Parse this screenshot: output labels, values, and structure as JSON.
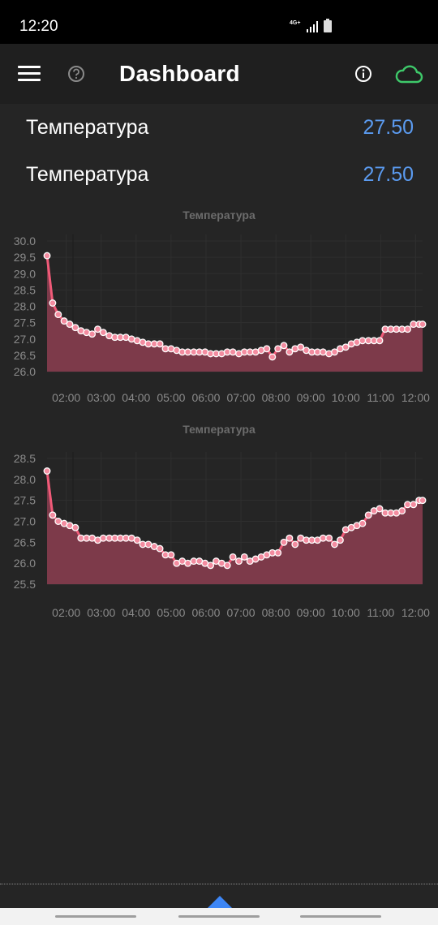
{
  "status_bar": {
    "time": "12:20",
    "network": "4G+",
    "icons": [
      "signal-icon",
      "battery-icon"
    ]
  },
  "app_bar": {
    "title": "Dashboard",
    "icons": [
      "menu-icon",
      "help-icon",
      "info-icon",
      "cloud-icon"
    ],
    "cloud_color": "#3ec96a"
  },
  "values": [
    {
      "label": "Температура",
      "value": "27.50"
    },
    {
      "label": "Температура",
      "value": "27.50"
    }
  ],
  "colors": {
    "accent_value": "#5b9bf0",
    "series_line": "#f05a78",
    "series_fill": "#7d3a4a",
    "point_fill": "#f38ca0"
  },
  "chart_data": [
    {
      "type": "area",
      "title": "Температура",
      "xlabel": "",
      "ylabel": "",
      "ylim": [
        26.0,
        30.0
      ],
      "y_ticks": [
        "30.0",
        "29.5",
        "29.0",
        "28.5",
        "28.0",
        "27.5",
        "27.0",
        "26.5",
        "26.0"
      ],
      "x_ticks": [
        "02:00",
        "03:00",
        "04:00",
        "05:00",
        "06:00",
        "07:00",
        "08:00",
        "09:00",
        "10:00",
        "11:00",
        "12:00"
      ],
      "x_range": [
        1.45,
        12.2
      ],
      "grid": true,
      "legend": "none",
      "series": [
        {
          "x": [
            1.45,
            1.61,
            1.77,
            1.94,
            2.1,
            2.26,
            2.42,
            2.58,
            2.74,
            2.9,
            3.06,
            3.23,
            3.39,
            3.55,
            3.71,
            3.87,
            4.03,
            4.19,
            4.35,
            4.52,
            4.68,
            4.84,
            5.0,
            5.16,
            5.32,
            5.48,
            5.65,
            5.81,
            5.97,
            6.13,
            6.29,
            6.45,
            6.61,
            6.77,
            6.94,
            7.1,
            7.26,
            7.42,
            7.58,
            7.74,
            7.9,
            8.06,
            8.23,
            8.39,
            8.55,
            8.71,
            8.87,
            9.03,
            9.19,
            9.35,
            9.52,
            9.68,
            9.84,
            10.0,
            10.16,
            10.32,
            10.48,
            10.65,
            10.81,
            10.97,
            11.13,
            11.29,
            11.45,
            11.61,
            11.77,
            11.94,
            12.1,
            12.2
          ],
          "y": [
            29.55,
            28.1,
            27.75,
            27.55,
            27.45,
            27.35,
            27.25,
            27.2,
            27.15,
            27.3,
            27.2,
            27.1,
            27.05,
            27.05,
            27.05,
            27.0,
            26.95,
            26.9,
            26.85,
            26.85,
            26.85,
            26.7,
            26.7,
            26.65,
            26.6,
            26.6,
            26.6,
            26.6,
            26.6,
            26.55,
            26.55,
            26.55,
            26.6,
            26.6,
            26.55,
            26.6,
            26.6,
            26.6,
            26.65,
            26.7,
            26.45,
            26.7,
            26.8,
            26.6,
            26.7,
            26.75,
            26.65,
            26.6,
            26.6,
            26.6,
            26.55,
            26.6,
            26.7,
            26.75,
            26.85,
            26.9,
            26.95,
            26.95,
            26.95,
            26.95,
            27.3,
            27.3,
            27.3,
            27.3,
            27.3,
            27.45,
            27.45,
            27.45
          ]
        }
      ]
    },
    {
      "type": "area",
      "title": "Температура",
      "xlabel": "",
      "ylabel": "",
      "ylim": [
        25.5,
        28.5
      ],
      "y_ticks": [
        "28.5",
        "28.0",
        "27.5",
        "27.0",
        "26.5",
        "26.0",
        "25.5"
      ],
      "x_ticks": [
        "02:00",
        "03:00",
        "04:00",
        "05:00",
        "06:00",
        "07:00",
        "08:00",
        "09:00",
        "10:00",
        "11:00",
        "12:00"
      ],
      "x_range": [
        1.45,
        12.2
      ],
      "grid": true,
      "legend": "none",
      "series": [
        {
          "x": [
            1.45,
            1.61,
            1.77,
            1.94,
            2.1,
            2.26,
            2.42,
            2.58,
            2.74,
            2.9,
            3.06,
            3.23,
            3.39,
            3.55,
            3.71,
            3.87,
            4.03,
            4.19,
            4.35,
            4.52,
            4.68,
            4.84,
            5.0,
            5.16,
            5.32,
            5.48,
            5.65,
            5.81,
            5.97,
            6.13,
            6.29,
            6.45,
            6.61,
            6.77,
            6.94,
            7.1,
            7.26,
            7.42,
            7.58,
            7.74,
            7.9,
            8.06,
            8.23,
            8.39,
            8.55,
            8.71,
            8.87,
            9.03,
            9.19,
            9.35,
            9.52,
            9.68,
            9.84,
            10.0,
            10.16,
            10.32,
            10.48,
            10.65,
            10.81,
            10.97,
            11.13,
            11.29,
            11.45,
            11.61,
            11.77,
            11.94,
            12.1,
            12.2
          ],
          "y": [
            28.2,
            27.15,
            27.0,
            26.95,
            26.9,
            26.85,
            26.6,
            26.6,
            26.6,
            26.55,
            26.6,
            26.6,
            26.6,
            26.6,
            26.6,
            26.6,
            26.55,
            26.45,
            26.45,
            26.4,
            26.35,
            26.2,
            26.2,
            26.0,
            26.05,
            26.0,
            26.05,
            26.05,
            26.0,
            25.95,
            26.05,
            26.0,
            25.95,
            26.15,
            26.05,
            26.15,
            26.05,
            26.1,
            26.15,
            26.2,
            26.25,
            26.25,
            26.5,
            26.6,
            26.45,
            26.6,
            26.55,
            26.55,
            26.55,
            26.6,
            26.6,
            26.45,
            26.55,
            26.8,
            26.85,
            26.9,
            26.95,
            27.15,
            27.25,
            27.3,
            27.2,
            27.2,
            27.2,
            27.25,
            27.4,
            27.4,
            27.5,
            27.5
          ]
        }
      ]
    }
  ]
}
